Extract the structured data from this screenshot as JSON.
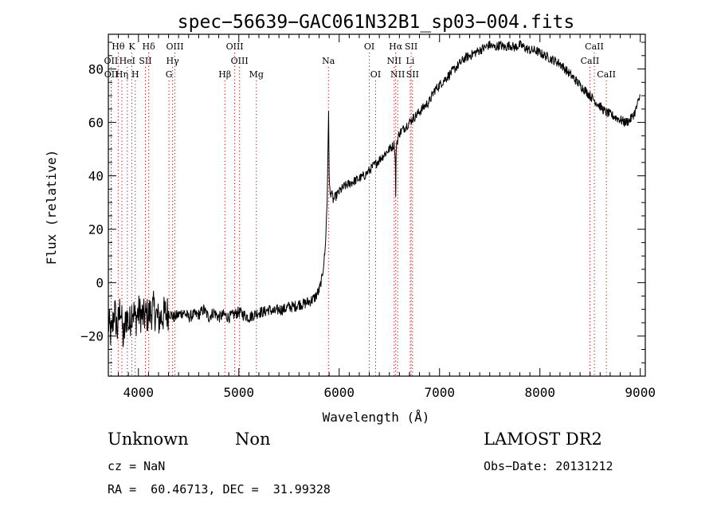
{
  "chart_data": {
    "type": "line",
    "title": "spec−56639−GAC061N32B1_sp03−004.fits",
    "xlabel": "Wavelength (Å)",
    "ylabel": "Flux (relative)",
    "xlim": [
      3700,
      9050
    ],
    "ylim": [
      -35,
      93
    ],
    "x_ticks": [
      4000,
      5000,
      6000,
      7000,
      8000,
      9000
    ],
    "y_ticks": [
      -20,
      0,
      20,
      40,
      60,
      80
    ],
    "grid": false,
    "line_color": "#000000",
    "marker_color": "#cc0000",
    "series": [
      {
        "x": [
          3700,
          3730,
          3760,
          3790,
          3820,
          3850,
          3880,
          3910,
          3940,
          3970,
          4000,
          4050,
          4100,
          4150,
          4200,
          4250,
          4300,
          4350,
          4400,
          4450,
          4500,
          4550,
          4600,
          4650,
          4700,
          4750,
          4800,
          4850,
          4900,
          4950,
          5000,
          5050,
          5100,
          5150,
          5200,
          5250,
          5300,
          5350,
          5400,
          5450,
          5500,
          5550,
          5600,
          5650,
          5700,
          5750,
          5800,
          5830,
          5860,
          5880,
          5890,
          5895,
          5900,
          5905,
          5910,
          5920,
          5940,
          5960,
          5980,
          6000,
          6050,
          6100,
          6150,
          6200,
          6250,
          6300,
          6350,
          6400,
          6450,
          6500,
          6530,
          6550,
          6560,
          6563,
          6566,
          6570,
          6600,
          6650,
          6700,
          6750,
          6800,
          6850,
          6900,
          6950,
          7000,
          7050,
          7100,
          7150,
          7200,
          7250,
          7300,
          7350,
          7400,
          7450,
          7500,
          7550,
          7600,
          7650,
          7700,
          7750,
          7800,
          7850,
          7900,
          7950,
          8000,
          8050,
          8100,
          8150,
          8200,
          8250,
          8300,
          8350,
          8400,
          8450,
          8500,
          8550,
          8600,
          8650,
          8700,
          8750,
          8800,
          8850,
          8900,
          8950,
          9000
        ],
        "y": [
          -15,
          -20,
          -10,
          -18,
          -8,
          -22,
          -12,
          -16,
          -9,
          -14,
          -11,
          -13,
          -12,
          -10,
          -14,
          -12,
          -11,
          -13,
          -12,
          -11,
          -13,
          -12,
          -12,
          -10,
          -13,
          -11,
          -13,
          -12,
          -13,
          -12,
          -11,
          -12,
          -13,
          -12,
          -11,
          -11,
          -10,
          -11,
          -10,
          -10,
          -9,
          -9,
          -8,
          -8,
          -7,
          -6,
          -3,
          2,
          12,
          30,
          55,
          64,
          40,
          36,
          33,
          34,
          31,
          32,
          33,
          34,
          36,
          37,
          38,
          39,
          40,
          42,
          44,
          46,
          48,
          50,
          51,
          52,
          44,
          32,
          46,
          52,
          56,
          58,
          60,
          62,
          64,
          66,
          68,
          72,
          74,
          76,
          78,
          80,
          82,
          84,
          85,
          86,
          87,
          88,
          89,
          88,
          89,
          88,
          89,
          88,
          89,
          88,
          87,
          87,
          86,
          85,
          84,
          83,
          82,
          80,
          78,
          76,
          74,
          72,
          70,
          68,
          66,
          64,
          63,
          62,
          61,
          60,
          61,
          64,
          70
        ]
      }
    ],
    "line_markers": [
      {
        "label": "Hθ",
        "wave": 3798,
        "row": 1
      },
      {
        "label": "K",
        "wave": 3934,
        "row": 1
      },
      {
        "label": "Hδ",
        "wave": 4102,
        "row": 1
      },
      {
        "label": "OIII",
        "wave": 4363,
        "row": 1
      },
      {
        "label": "OIII",
        "wave": 4959,
        "row": 1
      },
      {
        "label": "OI",
        "wave": 6300,
        "row": 1
      },
      {
        "label": "Hα",
        "wave": 6563,
        "row": 1
      },
      {
        "label": "SII",
        "wave": 6717,
        "row": 1
      },
      {
        "label": "CaII",
        "wave": 8542,
        "row": 1
      },
      {
        "label": "OII",
        "wave": 3727,
        "row": 2
      },
      {
        "label": "HeI",
        "wave": 3889,
        "row": 2
      },
      {
        "label": "SII",
        "wave": 4069,
        "row": 2
      },
      {
        "label": "Hγ",
        "wave": 4340,
        "row": 2
      },
      {
        "label": "OIII",
        "wave": 5007,
        "row": 2
      },
      {
        "label": "Na",
        "wave": 5893,
        "row": 2
      },
      {
        "label": "NII",
        "wave": 6548,
        "row": 2
      },
      {
        "label": "Li",
        "wave": 6708,
        "row": 2
      },
      {
        "label": "CaII",
        "wave": 8498,
        "row": 2
      },
      {
        "label": "OII",
        "wave": 3729,
        "row": 3
      },
      {
        "label": "Hη",
        "wave": 3835,
        "row": 3
      },
      {
        "label": "H",
        "wave": 3968,
        "row": 3
      },
      {
        "label": "G",
        "wave": 4304,
        "row": 3
      },
      {
        "label": "Hβ",
        "wave": 4861,
        "row": 3
      },
      {
        "label": "Mg",
        "wave": 5175,
        "row": 3
      },
      {
        "label": "OI",
        "wave": 6363,
        "row": 3
      },
      {
        "label": "NII",
        "wave": 6583,
        "row": 3
      },
      {
        "label": "SII",
        "wave": 6731,
        "row": 3
      },
      {
        "label": "CaII",
        "wave": 8662,
        "row": 3
      }
    ]
  },
  "info": {
    "object_class": "Unknown",
    "subclass": "Non",
    "survey": "LAMOST DR2",
    "redshift_text": "cz = NaN",
    "obs_date": "Obs−Date: 20131212",
    "coords": "RA =  60.46713, DEC =  31.99328"
  }
}
